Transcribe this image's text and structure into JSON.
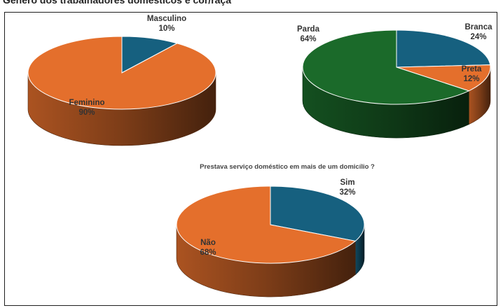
{
  "header_fragment": "Gênero dos trabalhadores domésticos e cor/raça",
  "chart_data": [
    {
      "type": "pie",
      "style": "3d",
      "title": "",
      "slices": [
        {
          "label": "Masculino",
          "value": 10,
          "color": "#16607f"
        },
        {
          "label": "Feminino",
          "value": 90,
          "color": "#e46f2c"
        }
      ],
      "data_labels": [
        "Masculino\n10%",
        "Feminino\n90%"
      ]
    },
    {
      "type": "pie",
      "style": "3d",
      "title": "",
      "slices": [
        {
          "label": "Branca",
          "value": 24,
          "color": "#16607f"
        },
        {
          "label": "Preta",
          "value": 12,
          "color": "#e46f2c"
        },
        {
          "label": "Parda",
          "value": 64,
          "color": "#1b6a2a"
        }
      ]
    },
    {
      "type": "pie",
      "style": "3d",
      "title": "Prestava serviço doméstico em mais de um domicílio ?",
      "slices": [
        {
          "label": "Sim",
          "value": 32,
          "color": "#16607f"
        },
        {
          "label": "Não",
          "value": 68,
          "color": "#e46f2c"
        }
      ]
    }
  ]
}
